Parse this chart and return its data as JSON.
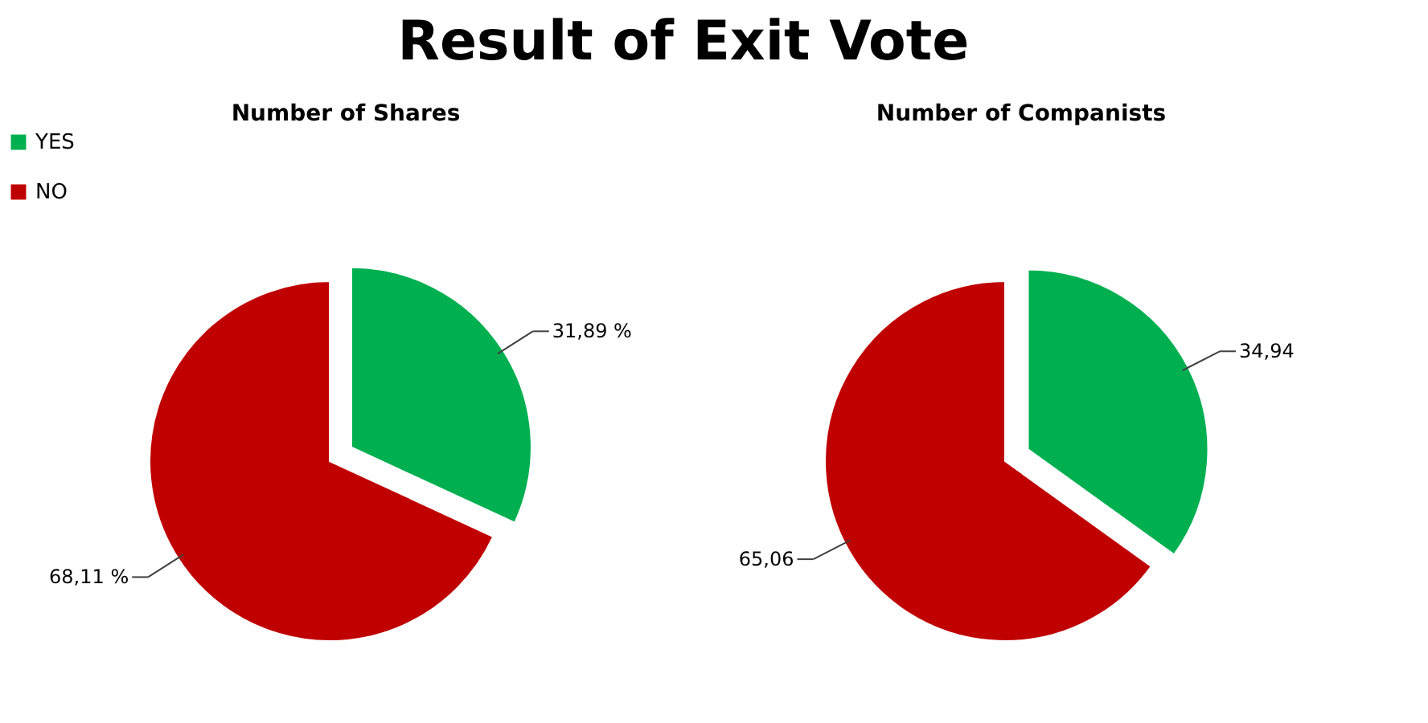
{
  "chart_data": [
    {
      "type": "pie",
      "title": "Result of Exit Vote",
      "subtitle": "Number of Shares",
      "categories": [
        "YES",
        "NO"
      ],
      "values": [
        31.89,
        68.11
      ],
      "colors": [
        "#00b050",
        "#c00000"
      ],
      "value_labels": [
        "31,89 %",
        "68,11 %"
      ],
      "legend": "top left"
    },
    {
      "type": "pie",
      "subtitle": "Number of Companists",
      "categories": [
        null,
        null
      ],
      "values": [
        34.94,
        65.06
      ],
      "colors": [
        "#00b050",
        "#c00000"
      ],
      "value_labels": [
        "34,94",
        "65,06"
      ]
    }
  ]
}
